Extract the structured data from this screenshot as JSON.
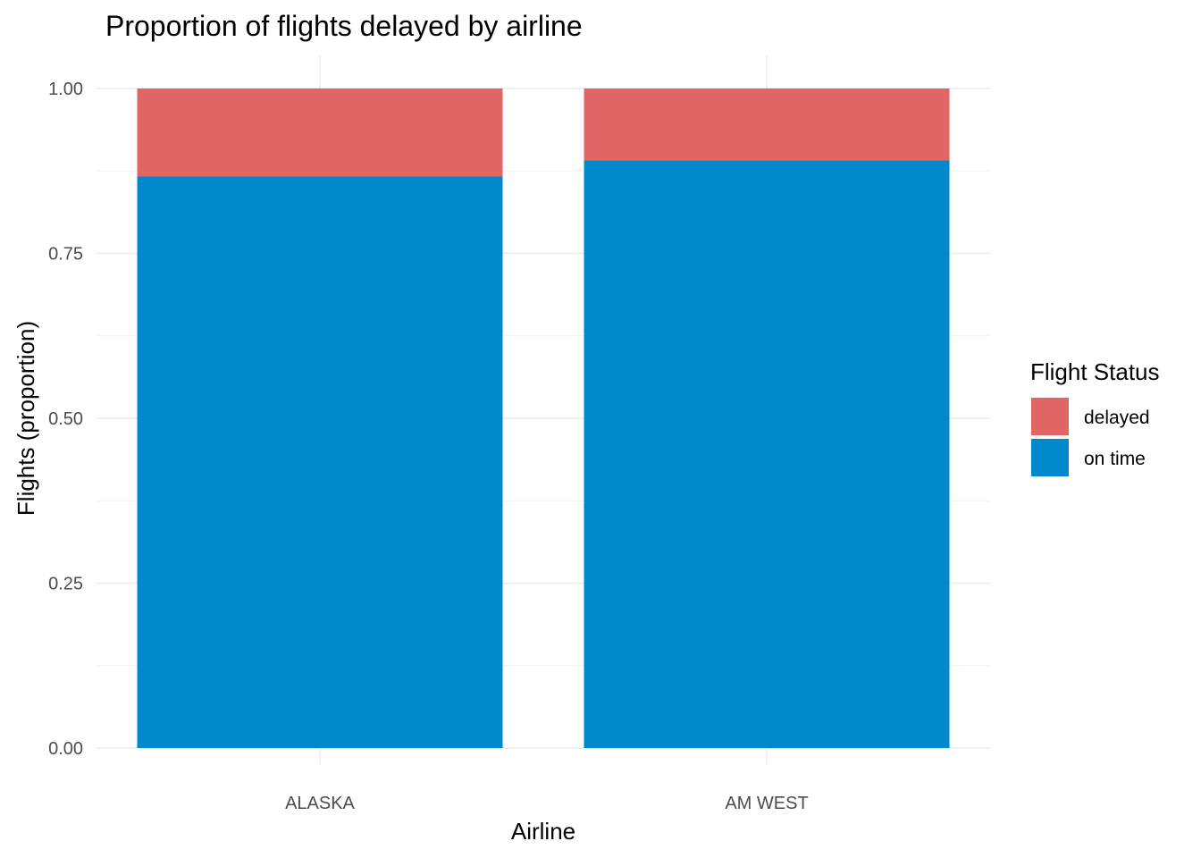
{
  "chart_data": {
    "type": "bar",
    "stacked": true,
    "title": "Proportion of flights delayed by airline",
    "xlabel": "Airline",
    "ylabel": "Flights (proportion)",
    "categories": [
      "ALASKA",
      "AM WEST"
    ],
    "series": [
      {
        "name": "delayed",
        "color": "#E06666",
        "values": [
          0.133,
          0.109
        ]
      },
      {
        "name": "on time",
        "color": "#0088CC",
        "values": [
          0.867,
          0.891
        ]
      }
    ],
    "ylim": [
      0,
      1
    ],
    "y_ticks": [
      0.0,
      0.25,
      0.5,
      0.75,
      1.0
    ],
    "y_tick_labels": [
      "0.00",
      "0.25",
      "0.50",
      "0.75",
      "1.00"
    ],
    "grid": true,
    "legend": {
      "title": "Flight Status",
      "placement": "right",
      "entries": [
        "delayed",
        "on time"
      ]
    }
  }
}
